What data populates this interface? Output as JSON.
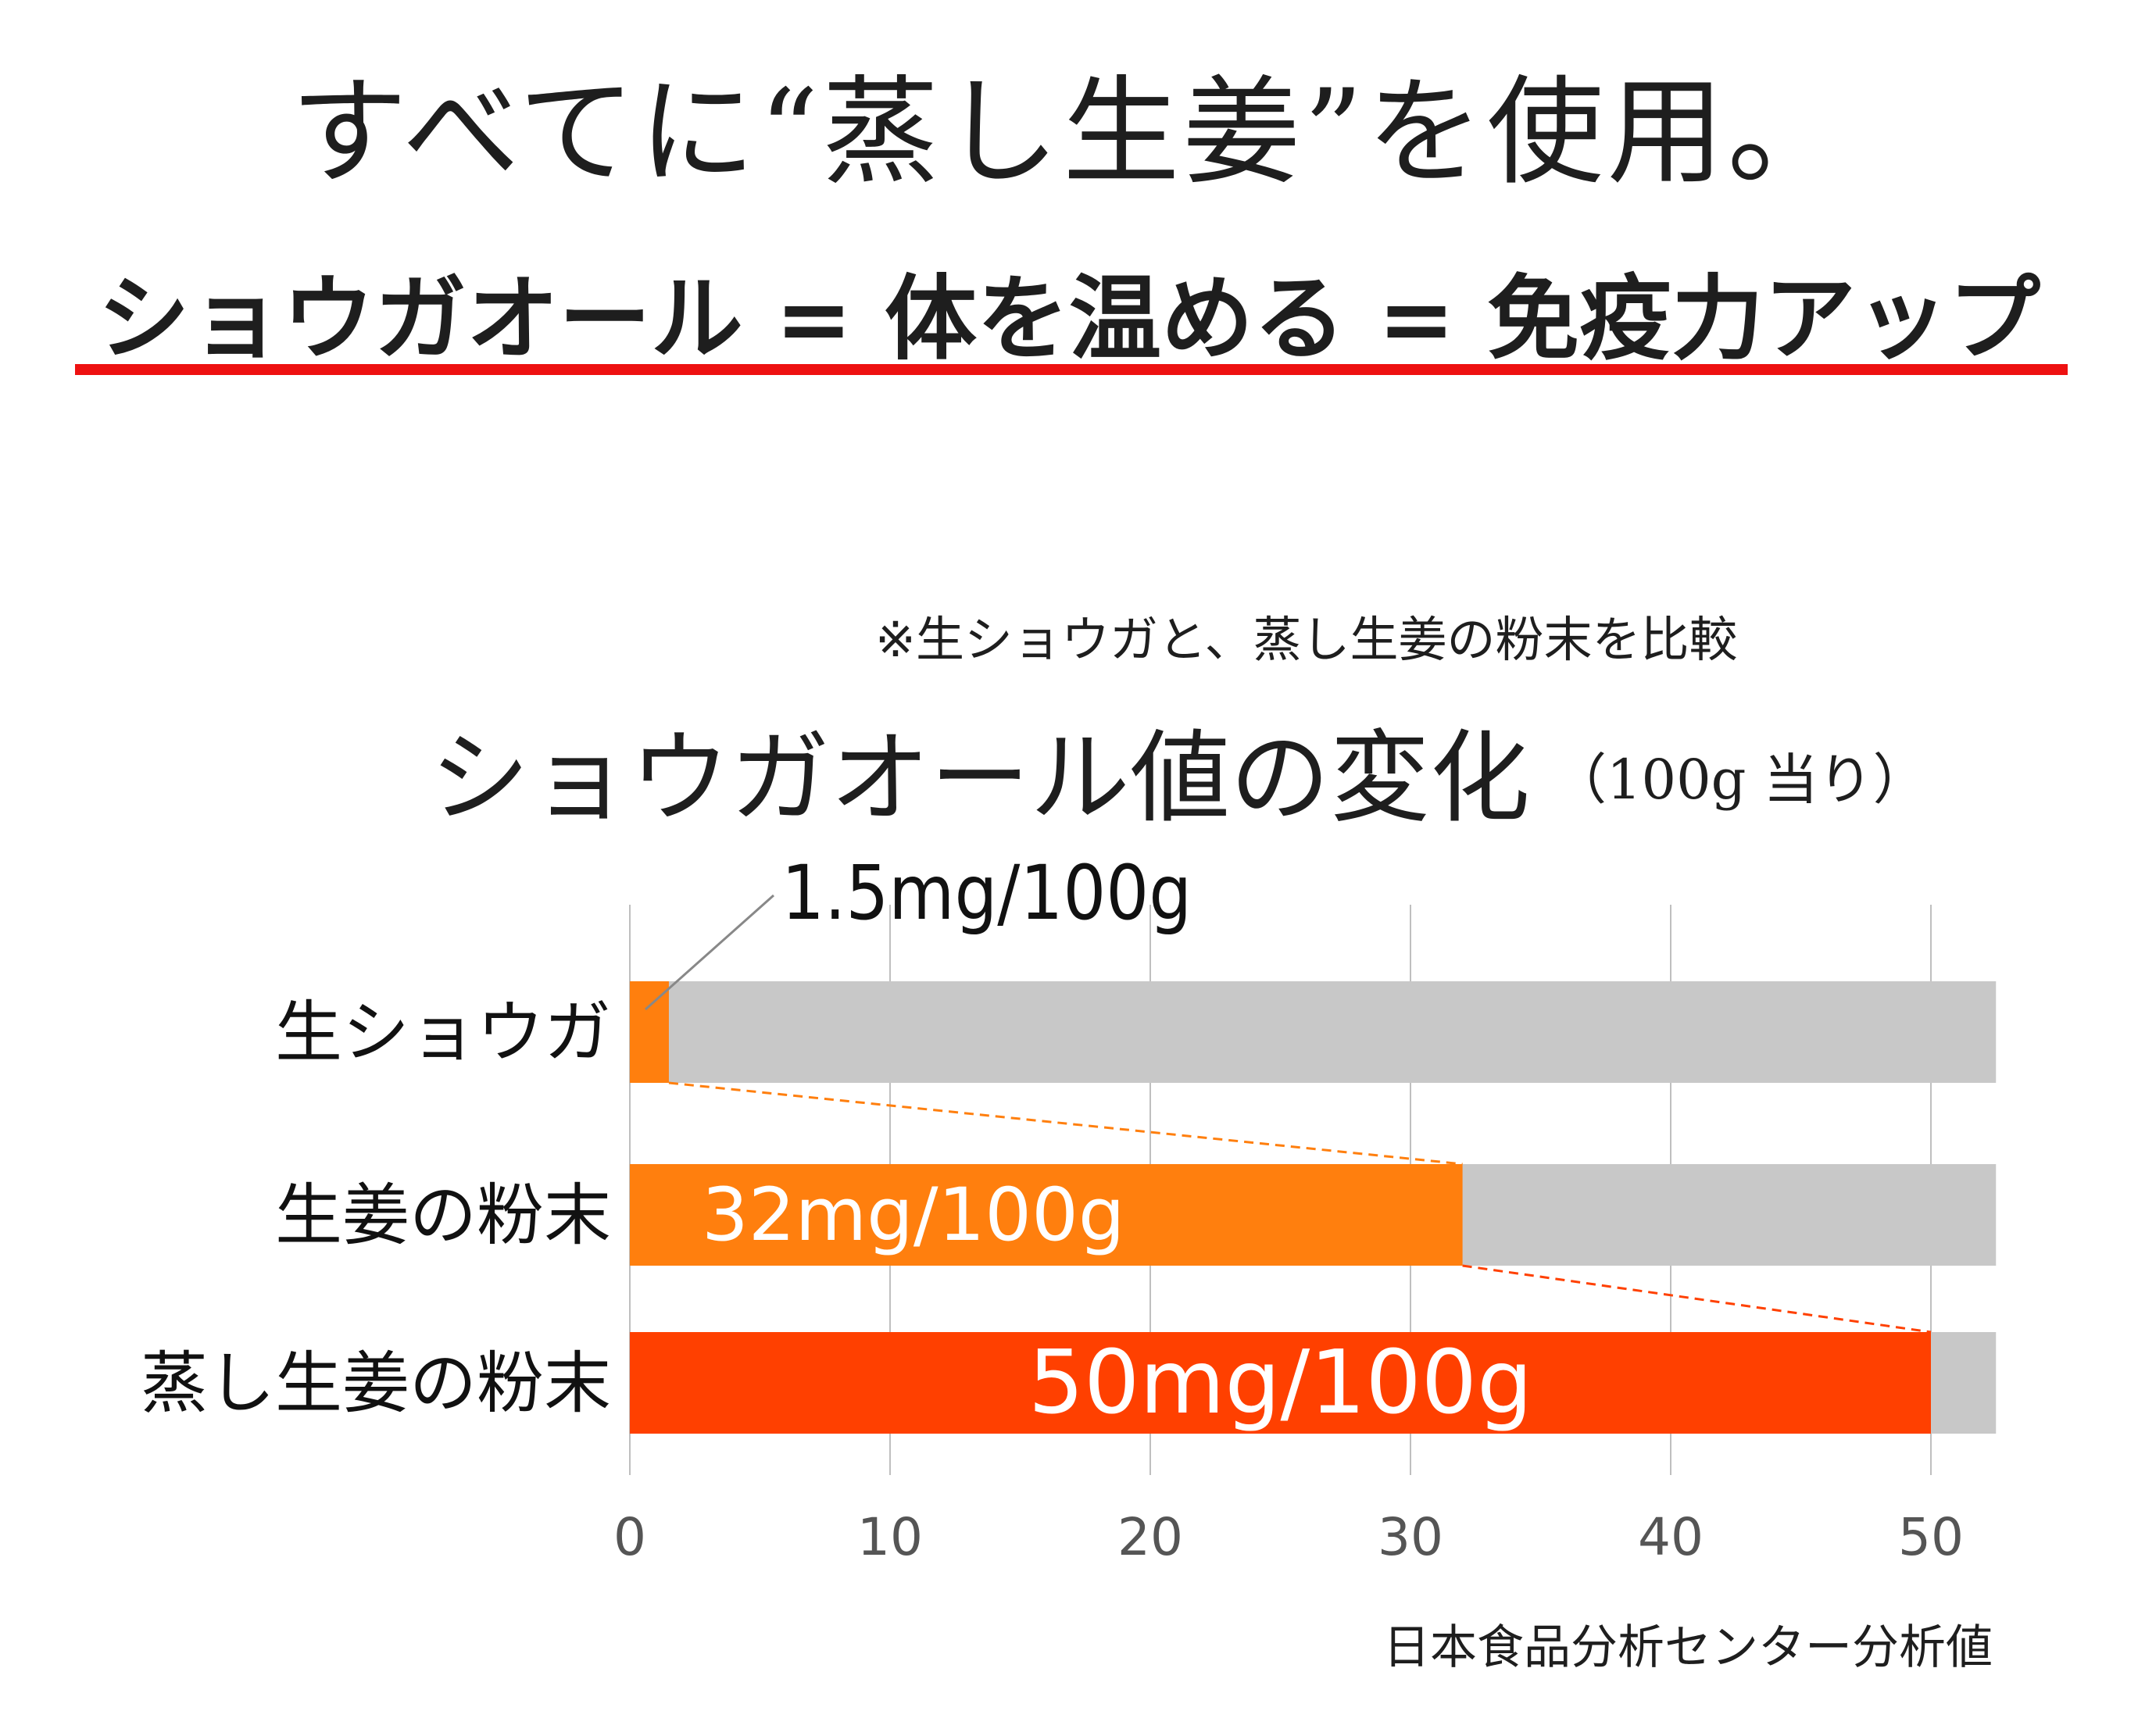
{
  "header": {
    "title": "すべてに“蒸し生姜”を使用。",
    "subtitle": "ショウガオール = 体を温める = 免疫力アップ"
  },
  "note": "※生ショウガと、蒸し生姜の粉末を比較",
  "source": "日本食品分析センター分析値",
  "colors": {
    "accent_red": "#ee1111",
    "bar_orange": "#ff7f0e",
    "bar_red": "#ff4000",
    "track_gray": "#c8c8c8",
    "grid": "#bfbfbf"
  },
  "chart_data": {
    "type": "bar",
    "orientation": "horizontal",
    "title": "ショウガオール値の変化",
    "title_unit": "（100g 当り）",
    "categories": [
      "生ショウガ",
      "生姜の粉末",
      "蒸し生姜の粉末"
    ],
    "values": [
      1.5,
      32,
      50
    ],
    "data_labels": [
      "1.5mg/100g",
      "32mg/100g",
      "50mg/100g"
    ],
    "bar_colors": [
      "#ff7f0e",
      "#ff7f0e",
      "#ff4000"
    ],
    "xticks": [
      "0",
      "10",
      "20",
      "30",
      "40",
      "50"
    ],
    "xlim": [
      0,
      52.5
    ],
    "grid": true,
    "background_track": true,
    "connector": "dashed"
  }
}
